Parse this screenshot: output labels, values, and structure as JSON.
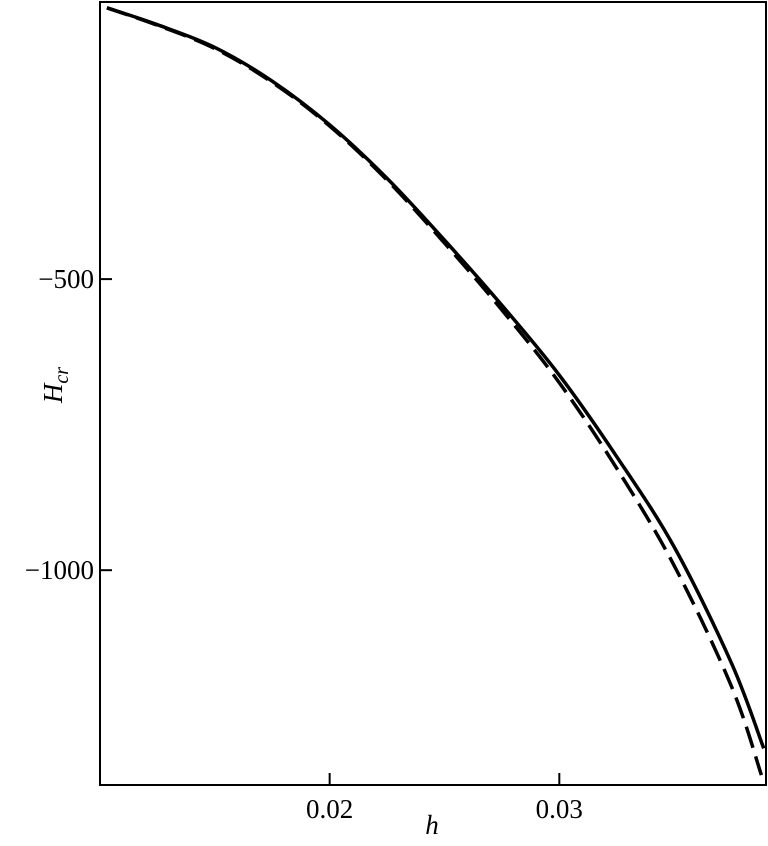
{
  "chart_data": {
    "type": "line",
    "x_label": "h",
    "y_label": "H",
    "y_label_sub": "cr",
    "xlim": [
      0.01,
      0.039
    ],
    "ylim": [
      -24,
      -1369
    ],
    "xticks": [
      0.02,
      0.03
    ],
    "yticks": [
      {
        "value": -500,
        "label": "−500"
      },
      {
        "value": -1000,
        "label": "−1000"
      }
    ],
    "series": [
      {
        "color": "#000000",
        "style": "solid",
        "x": [
          0.0103,
          0.0125,
          0.015,
          0.0175,
          0.02,
          0.0225,
          0.025,
          0.0275,
          0.03,
          0.0325,
          0.035,
          0.0375,
          0.0389
        ],
        "values": [
          -34,
          -63,
          -102,
          -160,
          -235,
          -327,
          -433,
          -545,
          -665,
          -805,
          -960,
          -1160,
          -1306
        ]
      },
      {
        "color": "#000000",
        "style": "dashed",
        "x": [
          0.0103,
          0.0125,
          0.015,
          0.0175,
          0.02,
          0.0225,
          0.025,
          0.0275,
          0.03,
          0.0325,
          0.035,
          0.0375,
          0.0388
        ],
        "values": [
          -34,
          -64,
          -104,
          -162,
          -237,
          -330,
          -438,
          -553,
          -678,
          -825,
          -992,
          -1200,
          -1352
        ]
      }
    ]
  }
}
